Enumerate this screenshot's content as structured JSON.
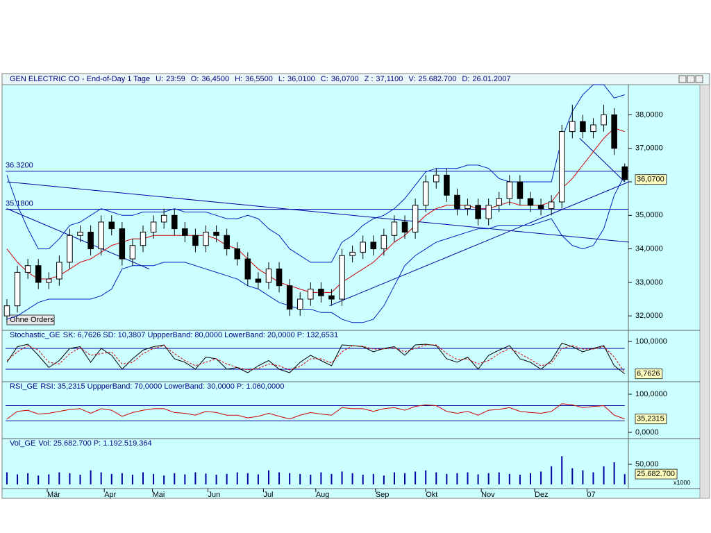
{
  "window": {
    "header": {
      "title": "GEN ELECTRIC CO - End-of-Day 1 Tage",
      "fields": [
        {
          "label": "U:",
          "value": "23:59"
        },
        {
          "label": "O:",
          "value": "36,4500"
        },
        {
          "label": "H:",
          "value": "36,5500"
        },
        {
          "label": "L:",
          "value": "36,0100"
        },
        {
          "label": "C:",
          "value": "36,0700"
        },
        {
          "label": "Z :",
          "value": "37,1100",
          "color": "#d00000"
        },
        {
          "label": "V:",
          "value": "25.682.700"
        },
        {
          "label": "D:",
          "value": "26.01.2007"
        }
      ]
    },
    "button": "Ohne Orders",
    "multiplier": "x1000"
  },
  "chart_data": [
    {
      "type": "candlestick",
      "xlim": [
        -0.13,
        59.35
      ],
      "ylim": [
        31.63,
        38.9
      ],
      "yticks": [
        {
          "value": 32,
          "label": "32,0000"
        },
        {
          "value": 33,
          "label": "33,0000"
        },
        {
          "value": 34,
          "label": "34,0000"
        },
        {
          "value": 35,
          "label": "35,0000"
        },
        {
          "value": 36,
          "label": "36,0000"
        },
        {
          "value": 37,
          "label": "37,0000"
        },
        {
          "value": 38,
          "label": "38,0000"
        }
      ],
      "open": [
        32.0,
        32.3,
        33.3,
        33.5,
        33.0,
        33.1,
        33.6,
        34.4,
        34.5,
        34.0,
        34.8,
        34.6,
        33.7,
        34.1,
        34.5,
        34.8,
        35.0,
        34.6,
        34.4,
        34.1,
        34.5,
        34.4,
        34.0,
        33.7,
        33.1,
        33.0,
        33.4,
        32.9,
        32.2,
        32.5,
        32.8,
        32.6,
        32.5,
        33.8,
        33.9,
        34.2,
        34.0,
        34.4,
        34.8,
        34.5,
        35.3,
        36.0,
        36.2,
        35.6,
        35.2,
        35.3,
        34.9,
        35.3,
        35.5,
        36.0,
        35.5,
        35.3,
        35.2,
        35.4,
        37.5,
        37.8,
        37.5,
        37.7,
        38.0,
        36.45
      ],
      "high": [
        32.5,
        33.5,
        33.7,
        33.7,
        33.3,
        33.8,
        34.6,
        34.7,
        34.7,
        35.0,
        35.0,
        34.8,
        34.3,
        34.7,
        35.0,
        35.2,
        35.2,
        34.8,
        34.6,
        34.7,
        34.7,
        34.6,
        34.2,
        33.9,
        33.3,
        33.6,
        33.6,
        33.1,
        32.7,
        33.0,
        33.0,
        32.8,
        34.0,
        34.1,
        34.4,
        34.4,
        34.6,
        35.0,
        35.0,
        35.5,
        36.2,
        36.4,
        36.4,
        35.8,
        35.5,
        35.5,
        35.5,
        35.7,
        36.2,
        36.2,
        35.7,
        35.5,
        35.6,
        37.7,
        38.3,
        38.0,
        37.9,
        38.3,
        38.2,
        36.55
      ],
      "low": [
        31.8,
        32.1,
        33.1,
        32.8,
        32.8,
        32.9,
        33.4,
        34.2,
        33.8,
        33.8,
        34.4,
        33.5,
        33.5,
        33.9,
        34.3,
        34.6,
        34.4,
        34.2,
        33.9,
        33.9,
        34.2,
        33.8,
        33.5,
        32.9,
        32.8,
        32.8,
        32.7,
        32.0,
        32.0,
        32.3,
        32.4,
        32.3,
        32.3,
        33.6,
        33.7,
        33.8,
        33.8,
        34.2,
        34.3,
        34.3,
        35.1,
        35.8,
        35.4,
        35.0,
        35.0,
        34.7,
        34.7,
        35.1,
        35.3,
        35.3,
        35.1,
        35.0,
        35.0,
        35.2,
        37.3,
        37.3,
        37.3,
        37.5,
        36.8,
        36.01
      ],
      "close": [
        32.3,
        33.3,
        33.5,
        33.0,
        33.1,
        33.6,
        34.4,
        34.5,
        34.0,
        34.8,
        34.6,
        33.7,
        34.1,
        34.5,
        34.8,
        35.0,
        34.6,
        34.4,
        34.1,
        34.5,
        34.4,
        34.0,
        33.7,
        33.1,
        33.0,
        33.4,
        32.9,
        32.2,
        32.5,
        32.8,
        32.6,
        32.5,
        33.8,
        33.9,
        34.2,
        34.0,
        34.4,
        34.8,
        34.5,
        35.3,
        36.0,
        36.2,
        35.6,
        35.2,
        35.3,
        34.9,
        35.3,
        35.5,
        36.0,
        35.5,
        35.3,
        35.2,
        35.4,
        37.5,
        37.8,
        37.5,
        37.7,
        38.0,
        37.0,
        36.07
      ],
      "last_label": "36,0700",
      "series": [
        {
          "color": "#d00000",
          "values": [
            34.0,
            33.6,
            33.3,
            33.1,
            33.1,
            33.2,
            33.4,
            33.6,
            33.7,
            33.9,
            34.1,
            34.2,
            34.3,
            34.3,
            34.4,
            34.4,
            34.4,
            34.4,
            34.4,
            34.4,
            34.3,
            34.1,
            34.0,
            33.7,
            33.4,
            33.2,
            33.0,
            32.9,
            32.8,
            32.7,
            32.7,
            32.7,
            33.0,
            33.2,
            33.4,
            33.6,
            33.9,
            34.2,
            34.4,
            34.7,
            35.0,
            35.2,
            35.3,
            35.3,
            35.3,
            35.2,
            35.2,
            35.3,
            35.4,
            35.3,
            35.3,
            35.3,
            35.4,
            35.8,
            36.1,
            36.5,
            36.9,
            37.3,
            37.6,
            37.5
          ]
        },
        {
          "color": "#0020c0",
          "values": [
            36.2,
            35.3,
            34.6,
            34.0,
            34.0,
            34.3,
            34.7,
            34.8,
            35.0,
            35.2,
            35.1,
            35.0,
            35.0,
            35.1,
            35.1,
            35.1,
            35.2,
            35.1,
            35.1,
            35.1,
            35.0,
            34.9,
            34.9,
            35.0,
            34.9,
            34.6,
            34.4,
            34.0,
            33.8,
            33.6,
            33.6,
            33.6,
            34.2,
            34.4,
            34.7,
            34.9,
            35.0,
            35.2,
            35.5,
            35.9,
            36.3,
            36.4,
            36.4,
            36.4,
            36.5,
            36.5,
            36.4,
            36.1,
            36.0,
            36.0,
            36.0,
            36.0,
            36.0,
            37.3,
            38.1,
            38.6,
            38.9,
            38.9,
            38.5,
            38.6
          ]
        },
        {
          "color": "#0020c0",
          "values": [
            31.9,
            32.0,
            32.2,
            32.4,
            32.5,
            32.5,
            32.5,
            32.5,
            32.5,
            32.6,
            32.8,
            33.4,
            33.5,
            33.5,
            33.5,
            33.6,
            33.6,
            33.6,
            33.5,
            33.4,
            33.3,
            33.2,
            33.1,
            32.9,
            32.8,
            32.6,
            32.4,
            32.3,
            32.2,
            32.2,
            32.1,
            32.1,
            31.9,
            31.8,
            31.8,
            31.9,
            32.3,
            32.9,
            33.5,
            33.8,
            34.0,
            34.2,
            34.3,
            34.4,
            34.5,
            34.6,
            34.6,
            34.7,
            34.7,
            34.7,
            34.7,
            34.8,
            34.9,
            34.4,
            34.1,
            34.0,
            34.1,
            34.6,
            35.6,
            36.2
          ]
        }
      ],
      "levels": [
        {
          "value": 36.32,
          "label": "36.3200"
        },
        {
          "value": 35.18,
          "label": "35.1800"
        }
      ],
      "trendlines": [
        {
          "x": [
            0,
            59.4
          ],
          "y": [
            36.0,
            34.2
          ]
        },
        {
          "x": [
            0,
            13.6
          ],
          "y": [
            35.2,
            33.4
          ]
        },
        {
          "x": [
            30.8,
            59.4
          ],
          "y": [
            32.3,
            36.0
          ]
        },
        {
          "x": [
            54.7,
            59.0
          ],
          "y": [
            37.3,
            36.0
          ]
        }
      ]
    },
    {
      "type": "line",
      "title": "Stochastic_GE",
      "title_color": "#c00000",
      "subtitle": "SK: 6,7626  SD: 10,3807  UppperBand: 80,0000  LowerBand: 20,0000  P: 132,6531",
      "xlim": [
        -0.13,
        59.35
      ],
      "ylim": [
        -12,
        128
      ],
      "yticks": [
        {
          "value": 100,
          "label": "100,0000"
        }
      ],
      "levels": [
        80,
        20
      ],
      "last_label": "6,7626",
      "series": [
        {
          "color": "#000000",
          "values": [
            40,
            85,
            92,
            60,
            25,
            45,
            80,
            85,
            40,
            80,
            60,
            20,
            50,
            75,
            85,
            90,
            50,
            40,
            20,
            55,
            50,
            20,
            25,
            10,
            30,
            45,
            20,
            10,
            40,
            60,
            45,
            30,
            90,
            88,
            85,
            70,
            80,
            85,
            60,
            90,
            92,
            88,
            50,
            40,
            55,
            20,
            60,
            75,
            88,
            50,
            40,
            20,
            45,
            95,
            85,
            70,
            80,
            88,
            30,
            6.7626
          ]
        },
        {
          "color": "#d00000",
          "dash": true,
          "values": [
            45,
            70,
            88,
            75,
            40,
            35,
            65,
            82,
            60,
            65,
            70,
            35,
            40,
            65,
            80,
            88,
            65,
            45,
            30,
            40,
            50,
            35,
            25,
            18,
            22,
            35,
            30,
            18,
            28,
            50,
            50,
            38,
            70,
            88,
            86,
            78,
            78,
            82,
            70,
            80,
            90,
            90,
            65,
            48,
            50,
            35,
            45,
            65,
            80,
            65,
            48,
            30,
            38,
            80,
            88,
            78,
            78,
            85,
            55,
            10.3807
          ]
        }
      ]
    },
    {
      "type": "line",
      "title": "RSI_GE",
      "title_color": "#c00000",
      "subtitle": "RSI: 35,2315  UppperBand: 70,0000  LowerBand: 30,0000  P: 1.060,0000",
      "xlim": [
        -0.13,
        59.35
      ],
      "ylim": [
        -12.7,
        129.1
      ],
      "yticks": [
        {
          "value": 100,
          "label": "100,0000"
        },
        {
          "value": 0,
          "label": "0,0000"
        }
      ],
      "levels": [
        70,
        30
      ],
      "last_label": "35,2315",
      "series": [
        {
          "color": "#d00000",
          "values": [
            35,
            55,
            58,
            48,
            50,
            55,
            60,
            62,
            50,
            62,
            58,
            42,
            52,
            58,
            62,
            62,
            52,
            50,
            45,
            55,
            52,
            45,
            45,
            38,
            42,
            50,
            42,
            35,
            45,
            52,
            48,
            45,
            65,
            62,
            62,
            55,
            62,
            65,
            58,
            68,
            72,
            70,
            55,
            50,
            55,
            45,
            58,
            60,
            65,
            55,
            52,
            50,
            55,
            75,
            72,
            65,
            68,
            70,
            45,
            35.2315
          ]
        }
      ]
    },
    {
      "type": "volume",
      "title": "Vol_GE",
      "title_color": "#000080",
      "subtitle": "Vol: 25.682.700  P: 1.192.519.364",
      "xlim": [
        -0.13,
        59.35
      ],
      "ylim": [
        -6.9,
        110.3
      ],
      "yticks": [
        {
          "value": 50,
          "label": "50,000"
        }
      ],
      "last_label": "25.682.700",
      "color": "#0000a0",
      "values": [
        30,
        25,
        28,
        22,
        25,
        30,
        28,
        24,
        35,
        30,
        26,
        28,
        24,
        30,
        26,
        22,
        28,
        25,
        30,
        27,
        24,
        26,
        30,
        28,
        25,
        35,
        30,
        28,
        26,
        24,
        30,
        26,
        32,
        28,
        24,
        26,
        22,
        30,
        28,
        32,
        35,
        30,
        26,
        28,
        30,
        25,
        28,
        30,
        26,
        24,
        28,
        32,
        45,
        70,
        40,
        35,
        30,
        45,
        55,
        25.6827
      ],
      "xticks": [
        {
          "value": 3.85,
          "label": "Mär"
        },
        {
          "value": 9.3,
          "label": "Apr"
        },
        {
          "value": 13.9,
          "label": "Mai"
        },
        {
          "value": 19.2,
          "label": "Jun"
        },
        {
          "value": 24.5,
          "label": "Jul"
        },
        {
          "value": 29.5,
          "label": "Aug"
        },
        {
          "value": 35.2,
          "label": "Sep"
        },
        {
          "value": 40.0,
          "label": "Okt"
        },
        {
          "value": 45.3,
          "label": "Nov"
        },
        {
          "value": 50.4,
          "label": "Dez"
        },
        {
          "value": 55.4,
          "label": "07"
        }
      ]
    }
  ]
}
